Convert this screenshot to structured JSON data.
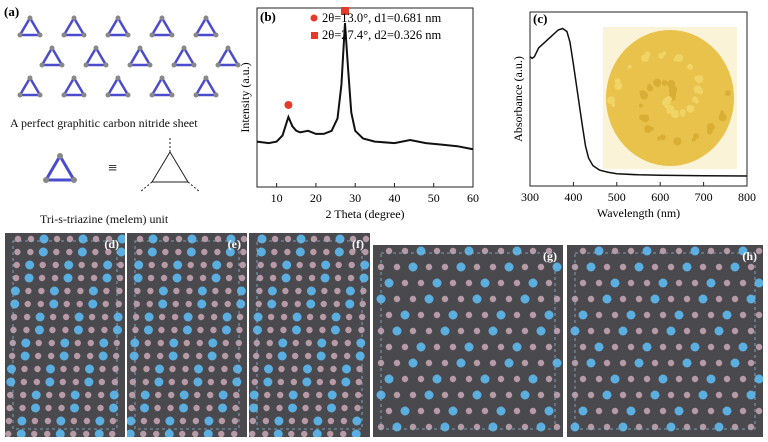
{
  "panel_a": {
    "label": "(a)",
    "sheet_caption": "A perfect graphitic carbon nitride sheet",
    "unit_caption": "Tri-s-triazine (melem) unit",
    "equiv": "≡",
    "colors": {
      "nitrogen": "#4b4bd0",
      "carbon": "#888888"
    }
  },
  "chart_data": [
    {
      "type": "line",
      "label": "(b)",
      "xlabel": "2 Theta (degree)",
      "ylabel": "Intensity (a.u.)",
      "xlim": [
        5,
        60
      ],
      "xticks": [
        10,
        20,
        30,
        40,
        50,
        60
      ],
      "legend": [
        {
          "marker": "circle",
          "text": "2θ=13.0°, d1=0.681 nm"
        },
        {
          "marker": "square",
          "text": "2θ=27.4°, d2=0.326 nm"
        }
      ],
      "legend_placement": "top-right",
      "marker_color": "#e53a2a",
      "peaks": [
        {
          "x": 13.0,
          "marker": "circle"
        },
        {
          "x": 27.4,
          "marker": "square"
        }
      ],
      "x": [
        5,
        8,
        10,
        11.5,
        12.5,
        13,
        14,
        15,
        16,
        18,
        20,
        22,
        24,
        25.5,
        26.5,
        27.4,
        28.2,
        29,
        30,
        32,
        35,
        40,
        44,
        48,
        52,
        56,
        60
      ],
      "y": [
        0.23,
        0.22,
        0.23,
        0.27,
        0.35,
        0.39,
        0.33,
        0.3,
        0.29,
        0.3,
        0.28,
        0.28,
        0.3,
        0.38,
        0.6,
        1.0,
        0.7,
        0.42,
        0.3,
        0.25,
        0.23,
        0.22,
        0.24,
        0.22,
        0.21,
        0.2,
        0.18
      ]
    },
    {
      "type": "line",
      "label": "(c)",
      "xlabel": "Wavelength (nm)",
      "ylabel": "Absorbance (a.u.)",
      "xlim": [
        300,
        800
      ],
      "xticks": [
        300,
        400,
        500,
        600,
        700,
        800
      ],
      "inset": "photo of yellow powder",
      "x": [
        300,
        305,
        310,
        320,
        335,
        350,
        365,
        375,
        385,
        392,
        400,
        410,
        420,
        428,
        435,
        445,
        460,
        480,
        500,
        550,
        600,
        700,
        800
      ],
      "y": [
        0.8,
        0.79,
        0.8,
        0.86,
        0.9,
        0.94,
        0.98,
        0.99,
        0.97,
        0.9,
        0.75,
        0.55,
        0.35,
        0.2,
        0.12,
        0.07,
        0.04,
        0.025,
        0.015,
        0.008,
        0.005,
        0.002,
        0.0
      ]
    }
  ],
  "lattice_panels": [
    {
      "label": "(d)"
    },
    {
      "label": "(e)"
    },
    {
      "label": "(f)"
    },
    {
      "label": "(g)"
    },
    {
      "label": "(h)"
    }
  ],
  "colors": {
    "lattice_bg": "#4a4a4e",
    "atom_blue": "#5aaee0",
    "atom_pink": "#b79aa6"
  }
}
